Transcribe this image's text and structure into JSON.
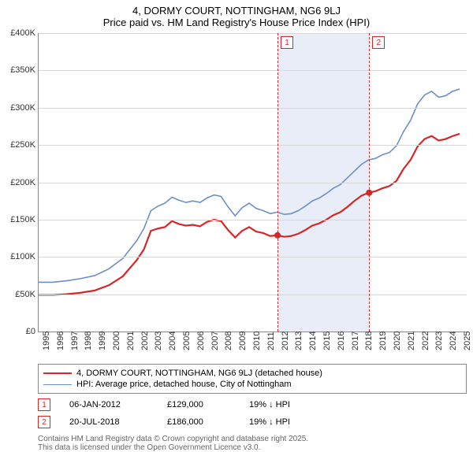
{
  "title": {
    "main": "4, DORMY COURT, NOTTINGHAM, NG6 9LJ",
    "sub": "Price paid vs. HM Land Registry's House Price Index (HPI)"
  },
  "chart": {
    "type": "line",
    "xlim": [
      1995,
      2025.5
    ],
    "ylim": [
      0,
      400000
    ],
    "ytick_step": 50000,
    "y_labels": [
      "£0",
      "£50K",
      "£100K",
      "£150K",
      "£200K",
      "£250K",
      "£300K",
      "£350K",
      "£400K"
    ],
    "x_labels": [
      "1995",
      "1996",
      "1997",
      "1998",
      "1999",
      "2000",
      "2001",
      "2002",
      "2003",
      "2004",
      "2005",
      "2006",
      "2007",
      "2008",
      "2009",
      "2010",
      "2011",
      "2012",
      "2013",
      "2014",
      "2015",
      "2016",
      "2017",
      "2018",
      "2019",
      "2020",
      "2021",
      "2022",
      "2023",
      "2024",
      "2025"
    ],
    "background_color": "#ffffff",
    "grid_color": "#d8d8d8",
    "line_width_property": 2.2,
    "line_width_hpi": 1.6,
    "series": {
      "property": {
        "color": "#d62728",
        "label": "4, DORMY COURT, NOTTINGHAM, NG6 9LJ (detached house)",
        "data": [
          [
            1995,
            49000
          ],
          [
            1996,
            49000
          ],
          [
            1997,
            50000
          ],
          [
            1998,
            52000
          ],
          [
            1999,
            55000
          ],
          [
            2000,
            62000
          ],
          [
            2001,
            74000
          ],
          [
            2002,
            96000
          ],
          [
            2002.5,
            110000
          ],
          [
            2003,
            135000
          ],
          [
            2003.5,
            138000
          ],
          [
            2004,
            140000
          ],
          [
            2004.5,
            148000
          ],
          [
            2005,
            144000
          ],
          [
            2005.5,
            142000
          ],
          [
            2006,
            143000
          ],
          [
            2006.5,
            141000
          ],
          [
            2007,
            147000
          ],
          [
            2007.5,
            150000
          ],
          [
            2008,
            148000
          ],
          [
            2008.5,
            136000
          ],
          [
            2009,
            126000
          ],
          [
            2009.5,
            135000
          ],
          [
            2010,
            140000
          ],
          [
            2010.5,
            134000
          ],
          [
            2011,
            132000
          ],
          [
            2011.5,
            128000
          ],
          [
            2012,
            129000
          ],
          [
            2012.5,
            127000
          ],
          [
            2013,
            128000
          ],
          [
            2013.5,
            131000
          ],
          [
            2014,
            136000
          ],
          [
            2014.5,
            142000
          ],
          [
            2015,
            145000
          ],
          [
            2015.5,
            150000
          ],
          [
            2016,
            156000
          ],
          [
            2016.5,
            160000
          ],
          [
            2017,
            167000
          ],
          [
            2017.5,
            175000
          ],
          [
            2018,
            182000
          ],
          [
            2018.5,
            186000
          ],
          [
            2019,
            188000
          ],
          [
            2019.5,
            192000
          ],
          [
            2020,
            195000
          ],
          [
            2020.5,
            202000
          ],
          [
            2021,
            218000
          ],
          [
            2021.5,
            230000
          ],
          [
            2022,
            248000
          ],
          [
            2022.5,
            258000
          ],
          [
            2023,
            262000
          ],
          [
            2023.5,
            256000
          ],
          [
            2024,
            258000
          ],
          [
            2024.5,
            262000
          ],
          [
            2025,
            265000
          ]
        ]
      },
      "hpi": {
        "color": "#6b8fc9",
        "label": "HPI: Average price, detached house, City of Nottingham",
        "data": [
          [
            1995,
            66000
          ],
          [
            1996,
            66000
          ],
          [
            1997,
            68000
          ],
          [
            1998,
            71000
          ],
          [
            1999,
            75000
          ],
          [
            2000,
            84000
          ],
          [
            2001,
            98000
          ],
          [
            2002,
            122000
          ],
          [
            2002.5,
            138000
          ],
          [
            2003,
            162000
          ],
          [
            2003.5,
            168000
          ],
          [
            2004,
            172000
          ],
          [
            2004.5,
            180000
          ],
          [
            2005,
            176000
          ],
          [
            2005.5,
            173000
          ],
          [
            2006,
            175000
          ],
          [
            2006.5,
            173000
          ],
          [
            2007,
            179000
          ],
          [
            2007.5,
            183000
          ],
          [
            2008,
            181000
          ],
          [
            2008.5,
            167000
          ],
          [
            2009,
            155000
          ],
          [
            2009.5,
            166000
          ],
          [
            2010,
            172000
          ],
          [
            2010.5,
            165000
          ],
          [
            2011,
            162000
          ],
          [
            2011.5,
            158000
          ],
          [
            2012,
            160000
          ],
          [
            2012.5,
            157000
          ],
          [
            2013,
            158000
          ],
          [
            2013.5,
            162000
          ],
          [
            2014,
            168000
          ],
          [
            2014.5,
            175000
          ],
          [
            2015,
            179000
          ],
          [
            2015.5,
            185000
          ],
          [
            2016,
            192000
          ],
          [
            2016.5,
            197000
          ],
          [
            2017,
            206000
          ],
          [
            2017.5,
            215000
          ],
          [
            2018,
            224000
          ],
          [
            2018.5,
            230000
          ],
          [
            2019,
            232000
          ],
          [
            2019.5,
            237000
          ],
          [
            2020,
            240000
          ],
          [
            2020.5,
            249000
          ],
          [
            2021,
            268000
          ],
          [
            2021.5,
            283000
          ],
          [
            2022,
            305000
          ],
          [
            2022.5,
            317000
          ],
          [
            2023,
            322000
          ],
          [
            2023.5,
            314000
          ],
          [
            2024,
            316000
          ],
          [
            2024.5,
            322000
          ],
          [
            2025,
            325000
          ]
        ]
      }
    },
    "band": {
      "start": 2012.02,
      "end": 2018.55,
      "color": "#e8edf7"
    },
    "markers": [
      {
        "label": "1",
        "x": 2012.02,
        "point_y": 129000
      },
      {
        "label": "2",
        "x": 2018.55,
        "point_y": 186000
      }
    ]
  },
  "sales": [
    {
      "badge": "1",
      "date": "06-JAN-2012",
      "price": "£129,000",
      "delta": "19% ↓ HPI"
    },
    {
      "badge": "2",
      "date": "20-JUL-2018",
      "price": "£186,000",
      "delta": "19% ↓ HPI"
    }
  ],
  "footer": {
    "line1": "Contains HM Land Registry data © Crown copyright and database right 2025.",
    "line2": "This data is licensed under the Open Government Licence v3.0."
  }
}
